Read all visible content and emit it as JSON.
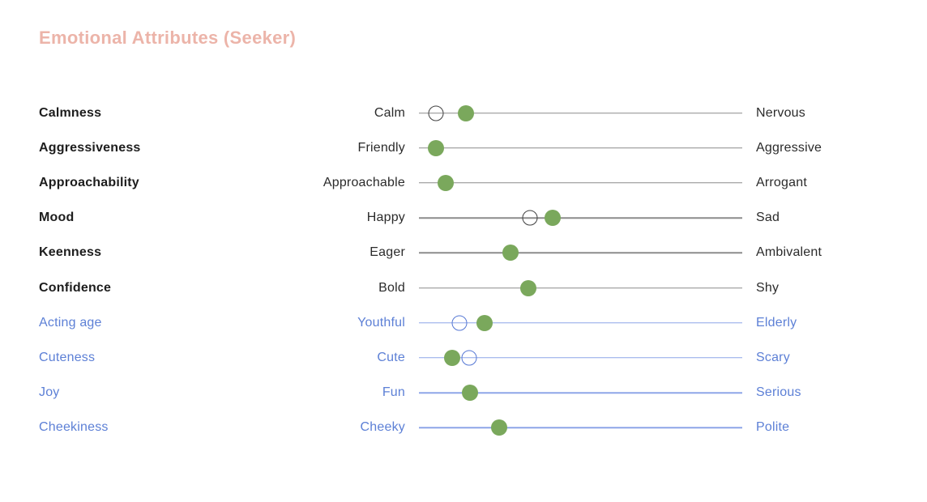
{
  "title": "Emotional Attributes (Seeker)",
  "colors": {
    "title": "#ecb4a9",
    "attribute_text_dark": "#1d1d1d",
    "anchor_text_dark": "#2b2b2b",
    "track_dark": "#8c8c8c",
    "open_circle_dark": "#3f3f3f",
    "handle_green": "#7aa85c",
    "blue_text": "#5d80d6",
    "blue_track": "#8ea6e8",
    "blue_open_circle": "#5577d4",
    "background": "#ffffff"
  },
  "slider_scale": {
    "min_pct": 0,
    "max_pct": 100
  },
  "attributes": [
    {
      "name": "Calmness",
      "left": "Calm",
      "right": "Nervous",
      "theme": "dark",
      "value_pct": 14.5,
      "secondary_pct": 5.3,
      "secondary_on_top": false
    },
    {
      "name": "Aggressiveness",
      "left": "Friendly",
      "right": "Aggressive",
      "theme": "dark",
      "value_pct": 5.3,
      "secondary_pct": null,
      "secondary_on_top": false
    },
    {
      "name": "Approachability",
      "left": "Approachable",
      "right": "Arrogant",
      "theme": "dark",
      "value_pct": 8.3,
      "secondary_pct": null,
      "secondary_on_top": false
    },
    {
      "name": "Mood",
      "left": "Happy",
      "right": "Sad",
      "theme": "dark",
      "value_pct": 41.4,
      "secondary_pct": 34.3,
      "secondary_on_top": false
    },
    {
      "name": "Keenness",
      "left": "Eager",
      "right": "Ambivalent",
      "theme": "dark",
      "value_pct": 28.3,
      "secondary_pct": null,
      "secondary_on_top": false
    },
    {
      "name": "Confidence",
      "left": "Bold",
      "right": "Shy",
      "theme": "dark",
      "value_pct": 33.8,
      "secondary_pct": null,
      "secondary_on_top": false
    },
    {
      "name": "Acting age",
      "left": "Youthful",
      "right": "Elderly",
      "theme": "blue",
      "value_pct": 20.3,
      "secondary_pct": 12.5,
      "secondary_on_top": false
    },
    {
      "name": "Cuteness",
      "left": "Cute",
      "right": "Scary",
      "theme": "blue",
      "value_pct": 10.3,
      "secondary_pct": 15.5,
      "secondary_on_top": true
    },
    {
      "name": "Joy",
      "left": "Fun",
      "right": "Serious",
      "theme": "blue",
      "value_pct": 15.8,
      "secondary_pct": null,
      "secondary_on_top": false
    },
    {
      "name": "Cheekiness",
      "left": "Cheeky",
      "right": "Polite",
      "theme": "blue",
      "value_pct": 24.8,
      "secondary_pct": null,
      "secondary_on_top": false
    }
  ]
}
